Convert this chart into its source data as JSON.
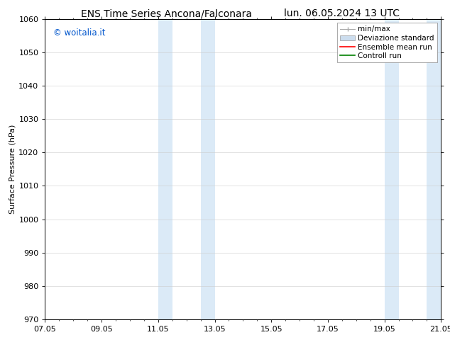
{
  "title_left": "ENS Time Series Ancona/Falconara",
  "title_right": "lun. 06.05.2024 13 UTC",
  "ylabel": "Surface Pressure (hPa)",
  "ylim": [
    970,
    1060
  ],
  "yticks": [
    970,
    980,
    990,
    1000,
    1010,
    1020,
    1030,
    1040,
    1050,
    1060
  ],
  "xtick_labels": [
    "07.05",
    "09.05",
    "11.05",
    "13.05",
    "15.05",
    "17.05",
    "19.05",
    "21.05"
  ],
  "xtick_positions": [
    0,
    2,
    4,
    6,
    8,
    10,
    12,
    14
  ],
  "shaded_regions": [
    {
      "xstart": 4.0,
      "xend": 4.5,
      "color": "#dbeaf7"
    },
    {
      "xstart": 5.5,
      "xend": 6.0,
      "color": "#dbeaf7"
    },
    {
      "xstart": 12.0,
      "xend": 12.5,
      "color": "#dbeaf7"
    },
    {
      "xstart": 13.5,
      "xend": 14.0,
      "color": "#dbeaf7"
    }
  ],
  "watermark_text": "© woitalia.it",
  "watermark_color": "#0055cc",
  "legend_entries": [
    {
      "label": "min/max",
      "color": "#aaaaaa",
      "type": "errorbar"
    },
    {
      "label": "Deviazione standard",
      "color": "#ccddee",
      "type": "patch"
    },
    {
      "label": "Ensemble mean run",
      "color": "#ff0000",
      "type": "line"
    },
    {
      "label": "Controll run",
      "color": "#008000",
      "type": "line"
    }
  ],
  "background_color": "#ffffff",
  "plot_bg_color": "#ffffff",
  "grid_color": "#cccccc",
  "title_fontsize": 10,
  "ylabel_fontsize": 8,
  "tick_fontsize": 8,
  "legend_fontsize": 7.5,
  "watermark_fontsize": 8.5
}
